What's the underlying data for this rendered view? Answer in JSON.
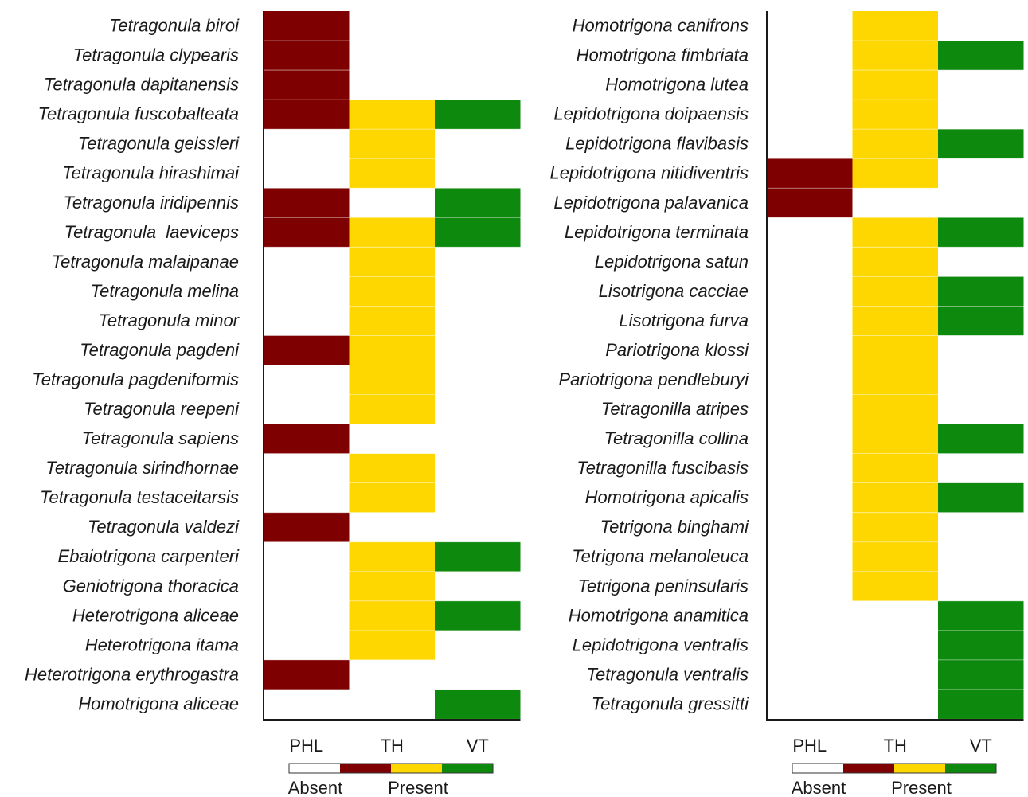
{
  "chart_data": {
    "type": "heatmap",
    "columns": [
      "PHL",
      "TH",
      "VT"
    ],
    "colors": {
      "PHL": "#7f0000",
      "TH": "#ffd700",
      "VT": "#0d8a0d",
      "absent": "#ffffff"
    },
    "legend": {
      "absent_label": "Absent",
      "present_label": "Present"
    },
    "panels": [
      {
        "species": [
          "Tetragonula biroi",
          "Tetragonula clypearis",
          "Tetragonula dapitanensis",
          "Tetragonula fuscobalteata",
          "Tetragonula geissleri",
          "Tetragonula hirashimai",
          "Tetragonula iridipennis",
          "Tetragonula  laeviceps",
          "Tetragonula malaipanae",
          "Tetragonula melina",
          "Tetragonula minor",
          "Tetragonula pagdeni",
          "Tetragonula pagdeniformis",
          "Tetragonula reepeni",
          "Tetragonula sapiens",
          "Tetragonula sirindhornae",
          "Tetragonula testaceitarsis",
          "Tetragonula valdezi",
          "Ebaiotrigona carpenteri",
          "Geniotrigona thoracica",
          "Heterotrigona aliceae",
          "Heterotrigona itama",
          "Heterotrigona erythrogastra",
          "Homotrigona aliceae"
        ],
        "presence": [
          [
            1,
            0,
            0
          ],
          [
            1,
            0,
            0
          ],
          [
            1,
            0,
            0
          ],
          [
            1,
            1,
            1
          ],
          [
            0,
            1,
            0
          ],
          [
            0,
            1,
            0
          ],
          [
            1,
            0,
            1
          ],
          [
            1,
            1,
            1
          ],
          [
            0,
            1,
            0
          ],
          [
            0,
            1,
            0
          ],
          [
            0,
            1,
            0
          ],
          [
            1,
            1,
            0
          ],
          [
            0,
            1,
            0
          ],
          [
            0,
            1,
            0
          ],
          [
            1,
            0,
            0
          ],
          [
            0,
            1,
            0
          ],
          [
            0,
            1,
            0
          ],
          [
            1,
            0,
            0
          ],
          [
            0,
            1,
            1
          ],
          [
            0,
            1,
            0
          ],
          [
            0,
            1,
            1
          ],
          [
            0,
            1,
            0
          ],
          [
            1,
            0,
            0
          ],
          [
            0,
            0,
            1
          ]
        ]
      },
      {
        "species": [
          "Homotrigona canifrons",
          "Homotrigona fimbriata",
          "Homotrigona lutea",
          "Lepidotrigona doipaensis",
          "Lepidotrigona flavibasis",
          "Lepidotrigona nitidiventris",
          "Lepidotrigona palavanica",
          "Lepidotrigona terminata",
          "Lepidotrigona satun",
          "Lisotrigona cacciae",
          "Lisotrigona furva",
          "Pariotrigona klossi",
          "Pariotrigona pendleburyi",
          "Tetragonilla atripes",
          "Tetragonilla collina",
          "Tetragonilla fuscibasis",
          "Homotrigona apicalis",
          "Tetrigona binghami",
          "Tetrigona melanoleuca",
          "Tetrigona peninsularis",
          "Homotrigona anamitica",
          "Lepidotrigona ventralis",
          "Tetragonula ventralis",
          "Tetragonula gressitti"
        ],
        "presence": [
          [
            0,
            1,
            0
          ],
          [
            0,
            1,
            1
          ],
          [
            0,
            1,
            0
          ],
          [
            0,
            1,
            0
          ],
          [
            0,
            1,
            1
          ],
          [
            1,
            1,
            0
          ],
          [
            1,
            0,
            0
          ],
          [
            0,
            1,
            1
          ],
          [
            0,
            1,
            0
          ],
          [
            0,
            1,
            1
          ],
          [
            0,
            1,
            1
          ],
          [
            0,
            1,
            0
          ],
          [
            0,
            1,
            0
          ],
          [
            0,
            1,
            0
          ],
          [
            0,
            1,
            1
          ],
          [
            0,
            1,
            0
          ],
          [
            0,
            1,
            1
          ],
          [
            0,
            1,
            0
          ],
          [
            0,
            1,
            0
          ],
          [
            0,
            1,
            0
          ],
          [
            0,
            0,
            1
          ],
          [
            0,
            0,
            1
          ],
          [
            0,
            0,
            1
          ],
          [
            0,
            0,
            1
          ]
        ]
      }
    ]
  }
}
